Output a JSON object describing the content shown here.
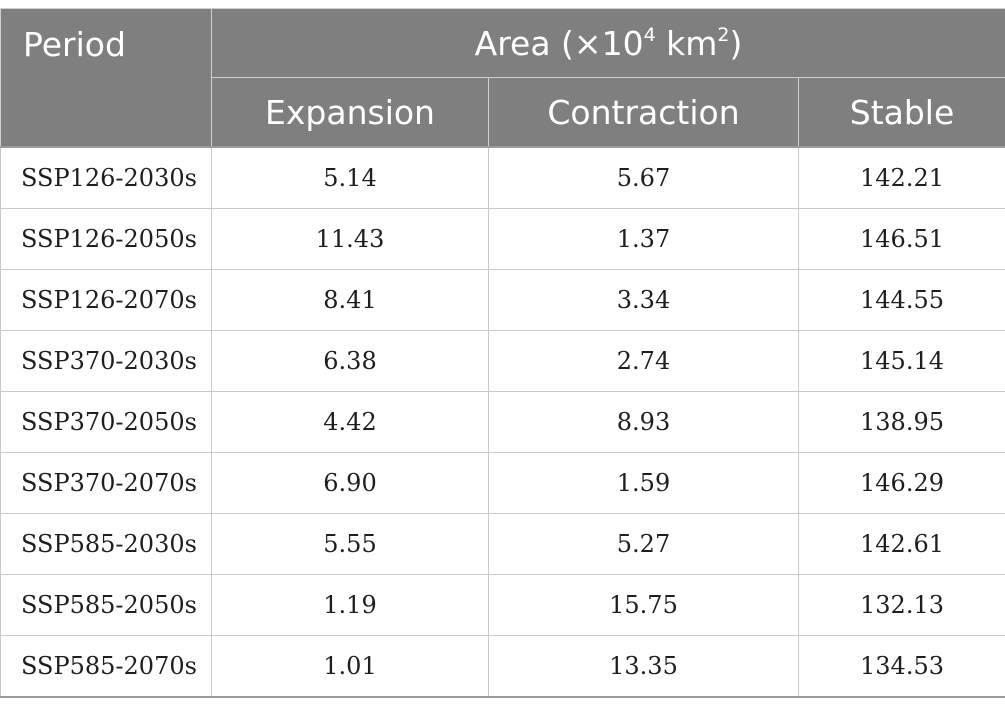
{
  "table": {
    "header": {
      "period": "Period",
      "area_prefix": "Area (×10",
      "area_exp": "4",
      "area_mid": " km",
      "area_sq": "2",
      "area_suffix": ")",
      "columns": [
        "Expansion",
        "Contraction",
        "Stable"
      ]
    },
    "rows": [
      {
        "period": "SSP126-2030s",
        "expansion": "5.14",
        "contraction": "5.67",
        "stable": "142.21"
      },
      {
        "period": "SSP126-2050s",
        "expansion": "11.43",
        "contraction": "1.37",
        "stable": "146.51"
      },
      {
        "period": "SSP126-2070s",
        "expansion": "8.41",
        "contraction": "3.34",
        "stable": "144.55"
      },
      {
        "period": "SSP370-2030s",
        "expansion": "6.38",
        "contraction": "2.74",
        "stable": "145.14"
      },
      {
        "period": "SSP370-2050s",
        "expansion": "4.42",
        "contraction": "8.93",
        "stable": "138.95"
      },
      {
        "period": "SSP370-2070s",
        "expansion": "6.90",
        "contraction": "1.59",
        "stable": "146.29"
      },
      {
        "period": "SSP585-2030s",
        "expansion": "5.55",
        "contraction": "5.27",
        "stable": "142.61"
      },
      {
        "period": "SSP585-2050s",
        "expansion": "1.19",
        "contraction": "15.75",
        "stable": "132.13"
      },
      {
        "period": "SSP585-2070s",
        "expansion": "1.01",
        "contraction": "13.35",
        "stable": "134.53"
      }
    ]
  }
}
